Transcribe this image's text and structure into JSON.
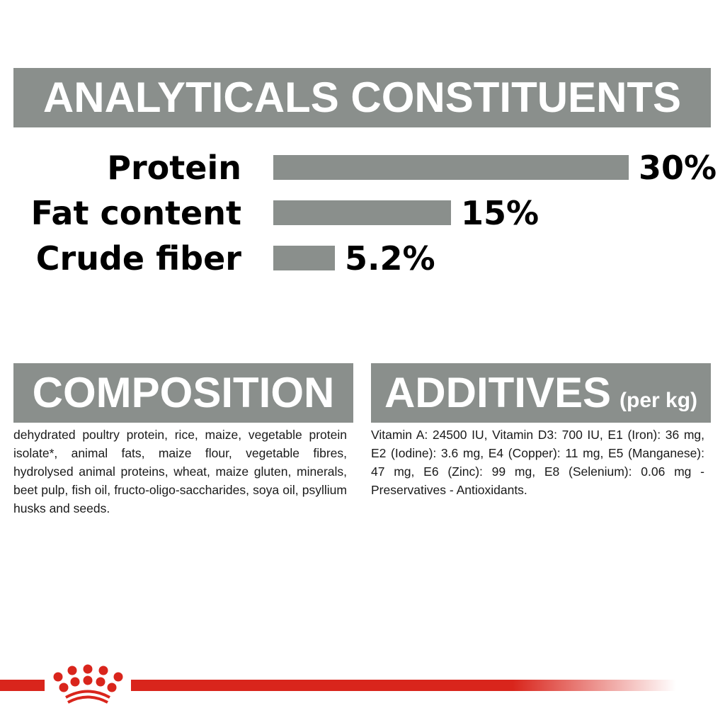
{
  "analytics": {
    "title": "ANALYTICALS CONSTITUENTS"
  },
  "chart_data": {
    "type": "bar",
    "orientation": "horizontal",
    "categories": [
      "Protein",
      "Fat content",
      "Crude fiber"
    ],
    "values": [
      30,
      15,
      5.2
    ],
    "value_labels": [
      "30%",
      "15%",
      "5.2%"
    ],
    "unit": "%",
    "bar_color": "#8a8f8c"
  },
  "composition": {
    "title": "COMPOSITION",
    "text": "dehydrated poultry protein, rice, maize, vegetable protein isolate*, animal fats, maize flour, vegetable fibres, hydrolysed animal proteins, wheat, maize gluten, minerals, beet pulp, fish oil, fructo-oligo-saccharides, soya oil, psyllium husks and seeds."
  },
  "additives": {
    "title": "ADDITIVES",
    "subtitle": "(per kg)",
    "text": "Vitamin A: 24500 IU, Vitamin D3: 700 IU, E1 (Iron): 36 mg, E2 (Iodine): 3.6 mg, E4 (Copper): 11 mg, E5 (Manganese): 47 mg, E6 (Zinc): 99 mg, E8 (Selenium): 0.06 mg - Preservatives - Antioxidants."
  },
  "colors": {
    "band": "#8a8f8c",
    "brand_red": "#d9251c"
  },
  "logo": {
    "name": "crown-logo"
  }
}
